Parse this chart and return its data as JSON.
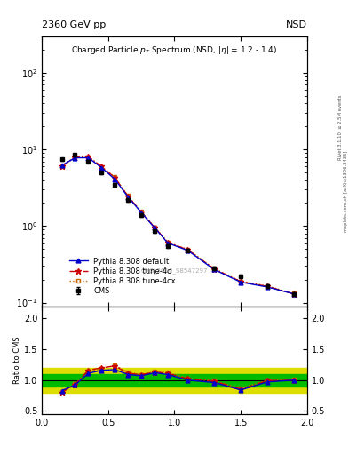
{
  "title_top_left": "2360 GeV pp",
  "title_top_right": "NSD",
  "main_title": "Charged Particle $p_T$ Spectrum (NSD, |$\\eta$| = 1.2 - 1.4)",
  "watermark": "CMS_2010_S8547297",
  "right_label": "mcplots.cern.ch [arXiv:1306.3436]",
  "right_label2": "Rivet 3.1.10, ≥ 2.5M events",
  "ylabel_ratio": "Ratio to CMS",
  "cms_pt": [
    0.15,
    0.25,
    0.35,
    0.45,
    0.55,
    0.65,
    0.75,
    0.85,
    0.95,
    1.1,
    1.3,
    1.5,
    1.7,
    1.9
  ],
  "cms_y": [
    7.5,
    8.5,
    7.0,
    5.0,
    3.5,
    2.2,
    1.4,
    0.85,
    0.55,
    0.48,
    0.28,
    0.22,
    0.165,
    0.13
  ],
  "cms_yerr": [
    0.3,
    0.4,
    0.3,
    0.2,
    0.15,
    0.1,
    0.07,
    0.04,
    0.025,
    0.02,
    0.014,
    0.011,
    0.009,
    0.007
  ],
  "pythia_default_pt": [
    0.15,
    0.25,
    0.35,
    0.45,
    0.55,
    0.65,
    0.75,
    0.85,
    0.95,
    1.1,
    1.3,
    1.5,
    1.7,
    1.9
  ],
  "pythia_default_y": [
    6.2,
    7.8,
    7.8,
    5.8,
    4.1,
    2.4,
    1.5,
    0.95,
    0.6,
    0.48,
    0.27,
    0.185,
    0.16,
    0.13
  ],
  "pythia_4c_pt": [
    0.15,
    0.25,
    0.35,
    0.45,
    0.55,
    0.65,
    0.75,
    0.85,
    0.95,
    1.1,
    1.3,
    1.5,
    1.7,
    1.9
  ],
  "pythia_4c_y": [
    6.0,
    7.9,
    8.1,
    6.0,
    4.3,
    2.45,
    1.52,
    0.96,
    0.61,
    0.49,
    0.275,
    0.188,
    0.163,
    0.13
  ],
  "pythia_4cx_pt": [
    0.15,
    0.25,
    0.35,
    0.45,
    0.55,
    0.65,
    0.75,
    0.85,
    0.95,
    1.1,
    1.3,
    1.5,
    1.7,
    1.9
  ],
  "pythia_4cx_y": [
    6.1,
    8.0,
    8.0,
    5.9,
    4.35,
    2.48,
    1.53,
    0.97,
    0.615,
    0.495,
    0.278,
    0.19,
    0.165,
    0.131
  ],
  "ratio_default": [
    0.83,
    0.92,
    1.11,
    1.16,
    1.17,
    1.09,
    1.07,
    1.12,
    1.09,
    1.0,
    0.96,
    0.84,
    0.97,
    1.0
  ],
  "ratio_4c": [
    0.8,
    0.93,
    1.16,
    1.2,
    1.23,
    1.11,
    1.09,
    1.13,
    1.11,
    1.02,
    0.98,
    0.855,
    0.99,
    1.0
  ],
  "ratio_4cx": [
    0.81,
    0.94,
    1.14,
    1.18,
    1.24,
    1.13,
    1.09,
    1.14,
    1.12,
    1.03,
    0.99,
    0.864,
    1.0,
    1.01
  ],
  "color_default": "#0000cc",
  "color_4c": "#cc0000",
  "color_4cx": "#cc6600",
  "color_cms": "#000000",
  "color_green": "#00bb00",
  "color_yellow": "#dddd00",
  "xlim": [
    0.0,
    2.0
  ],
  "ylim_main": [
    0.09,
    300
  ],
  "ylim_ratio": [
    0.45,
    2.2
  ],
  "ratio_yticks": [
    0.5,
    1.0,
    1.5,
    2.0
  ],
  "main_yticks": [
    0.1,
    1.0,
    10.0,
    100.0
  ],
  "xticks": [
    0.0,
    0.5,
    1.0,
    1.5,
    2.0
  ]
}
